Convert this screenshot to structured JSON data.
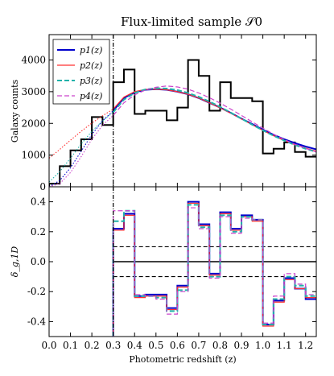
{
  "chart_data": [
    {
      "type": "line",
      "title": "Flux-limited sample 𝒮0",
      "ylabel": "Galaxy counts",
      "xlabel": "",
      "xlim": [
        0.0,
        1.25
      ],
      "ylim": [
        0,
        4800
      ],
      "yticks": [
        0,
        1000,
        2000,
        3000,
        4000
      ],
      "cut_line_x": 0.3,
      "legend_position": "top-left",
      "histogram": {
        "bin_edges": [
          0.0,
          0.05,
          0.1,
          0.15,
          0.2,
          0.25,
          0.3,
          0.35,
          0.4,
          0.45,
          0.5,
          0.55,
          0.6,
          0.65,
          0.7,
          0.75,
          0.8,
          0.85,
          0.9,
          0.95,
          1.0,
          1.05,
          1.1,
          1.15,
          1.2,
          1.25
        ],
        "counts": [
          100,
          650,
          1150,
          1500,
          2200,
          1950,
          3300,
          3700,
          2300,
          2400,
          2400,
          2100,
          2500,
          4000,
          3500,
          2400,
          3300,
          2800,
          2800,
          2700,
          1050,
          1200,
          1400,
          1100,
          950
        ]
      },
      "series": [
        {
          "name": "p_1(z)",
          "color": "#0000cc",
          "style": "solid",
          "width": 2.0,
          "x": [
            0.3,
            0.35,
            0.4,
            0.45,
            0.5,
            0.55,
            0.6,
            0.65,
            0.7,
            0.75,
            0.8,
            0.85,
            0.9,
            0.95,
            1.0,
            1.05,
            1.1,
            1.15,
            1.2,
            1.25
          ],
          "y": [
            2400,
            2800,
            2980,
            3060,
            3080,
            3060,
            3000,
            2920,
            2800,
            2650,
            2500,
            2330,
            2150,
            1980,
            1800,
            1640,
            1500,
            1380,
            1270,
            1180
          ]
        },
        {
          "name": "p_2(z)",
          "color": "#ff3030",
          "style": "solid",
          "width": 1.2,
          "x": [
            0.3,
            0.35,
            0.4,
            0.45,
            0.5,
            0.55,
            0.6,
            0.65,
            0.7,
            0.75,
            0.8,
            0.85,
            0.9,
            0.95,
            1.0,
            1.05,
            1.1,
            1.15,
            1.2,
            1.25
          ],
          "y": [
            2450,
            2830,
            3000,
            3070,
            3080,
            3060,
            3000,
            2920,
            2800,
            2650,
            2490,
            2320,
            2140,
            1960,
            1780,
            1610,
            1460,
            1330,
            1220,
            1120
          ]
        },
        {
          "name": "p_3(z)",
          "color": "#20b2aa",
          "style": "dashed",
          "width": 2.0,
          "x": [
            0.3,
            0.35,
            0.4,
            0.45,
            0.5,
            0.55,
            0.6,
            0.65,
            0.7,
            0.75,
            0.8,
            0.85,
            0.9,
            0.95,
            1.0,
            1.05,
            1.1,
            1.15,
            1.2,
            1.25
          ],
          "y": [
            2350,
            2750,
            2960,
            3070,
            3110,
            3100,
            3050,
            2960,
            2840,
            2690,
            2520,
            2340,
            2150,
            1960,
            1780,
            1610,
            1460,
            1320,
            1200,
            1100
          ]
        },
        {
          "name": "p_4(z)",
          "color": "#cc44cc",
          "style": "dashed",
          "width": 1.2,
          "x": [
            0.3,
            0.35,
            0.4,
            0.45,
            0.5,
            0.55,
            0.6,
            0.65,
            0.7,
            0.75,
            0.8,
            0.85,
            0.9,
            0.95,
            1.0,
            1.05,
            1.1,
            1.15,
            1.2,
            1.25
          ],
          "y": [
            2250,
            2650,
            2900,
            3050,
            3140,
            3180,
            3150,
            3080,
            2960,
            2810,
            2640,
            2450,
            2250,
            2050,
            1850,
            1660,
            1490,
            1340,
            1210,
            1100
          ]
        }
      ],
      "extrapolations": [
        {
          "color": "#ff3030",
          "x": [
            0.0,
            0.05,
            0.1,
            0.15,
            0.2,
            0.25,
            0.3
          ],
          "y": [
            900,
            1180,
            1470,
            1750,
            2010,
            2240,
            2450
          ]
        },
        {
          "color": "#20b2aa",
          "x": [
            0.0,
            0.05,
            0.1,
            0.15,
            0.2,
            0.25,
            0.3
          ],
          "y": [
            150,
            480,
            900,
            1350,
            1750,
            2080,
            2350
          ]
        },
        {
          "color": "#0000cc",
          "x": [
            0.0,
            0.05,
            0.1,
            0.15,
            0.2,
            0.25,
            0.3
          ],
          "y": [
            0,
            200,
            600,
            1120,
            1650,
            2080,
            2400
          ]
        },
        {
          "color": "#cc44cc",
          "x": [
            0.0,
            0.05,
            0.1,
            0.15,
            0.2,
            0.25,
            0.3
          ],
          "y": [
            0,
            100,
            450,
            950,
            1500,
            1940,
            2250
          ]
        }
      ]
    },
    {
      "type": "line",
      "ylabel": "δ_g,1D",
      "xlabel": "Photometric redshift (z)",
      "xlim": [
        0.0,
        1.25
      ],
      "ylim": [
        -0.5,
        0.5
      ],
      "yticks": [
        -0.4,
        -0.2,
        0.0,
        0.2,
        0.4
      ],
      "xticks": [
        "0.0",
        "0.1",
        "0.2",
        "0.3",
        "0.4",
        "0.5",
        "0.6",
        "0.7",
        "0.8",
        "0.9",
        "1.0",
        "1.1",
        "1.2"
      ],
      "cut_line_x": 0.3,
      "reference_lines": [
        {
          "y": 0.0,
          "style": "solid"
        },
        {
          "y": 0.1,
          "style": "dashed"
        },
        {
          "y": -0.1,
          "style": "dashed"
        }
      ],
      "bin_edges": [
        0.3,
        0.35,
        0.4,
        0.45,
        0.5,
        0.55,
        0.6,
        0.65,
        0.7,
        0.75,
        0.8,
        0.85,
        0.9,
        0.95,
        1.0,
        1.05,
        1.1,
        1.15,
        1.2,
        1.25
      ],
      "series": [
        {
          "name": "p_1(z)",
          "color": "#0000cc",
          "style": "solid",
          "width": 2.0,
          "values": [
            0.22,
            0.32,
            -0.23,
            -0.22,
            -0.22,
            -0.31,
            -0.16,
            0.4,
            0.25,
            -0.08,
            0.33,
            0.22,
            0.31,
            0.28,
            -0.42,
            -0.26,
            -0.11,
            -0.18,
            -0.25
          ]
        },
        {
          "name": "p_2(z)",
          "color": "#ff3030",
          "style": "solid",
          "width": 1.2,
          "values": [
            0.21,
            0.31,
            -0.24,
            -0.23,
            -0.23,
            -0.32,
            -0.17,
            0.39,
            0.24,
            -0.09,
            0.32,
            0.21,
            0.3,
            0.27,
            -0.43,
            -0.27,
            -0.12,
            -0.18,
            -0.24
          ]
        },
        {
          "name": "p_3(z)",
          "color": "#20b2aa",
          "style": "dashed",
          "width": 2.0,
          "values": [
            0.27,
            0.34,
            -0.23,
            -0.23,
            -0.24,
            -0.33,
            -0.19,
            0.38,
            0.23,
            -0.1,
            0.31,
            0.2,
            0.3,
            0.28,
            -0.42,
            -0.25,
            -0.1,
            -0.16,
            -0.23
          ]
        },
        {
          "name": "p_4(z)",
          "color": "#cc44cc",
          "style": "dashed",
          "width": 1.2,
          "values": [
            0.34,
            0.34,
            -0.22,
            -0.23,
            -0.25,
            -0.35,
            -0.2,
            0.36,
            0.22,
            -0.11,
            0.3,
            0.19,
            0.29,
            0.28,
            -0.41,
            -0.23,
            -0.08,
            -0.15,
            -0.22
          ]
        }
      ]
    }
  ]
}
